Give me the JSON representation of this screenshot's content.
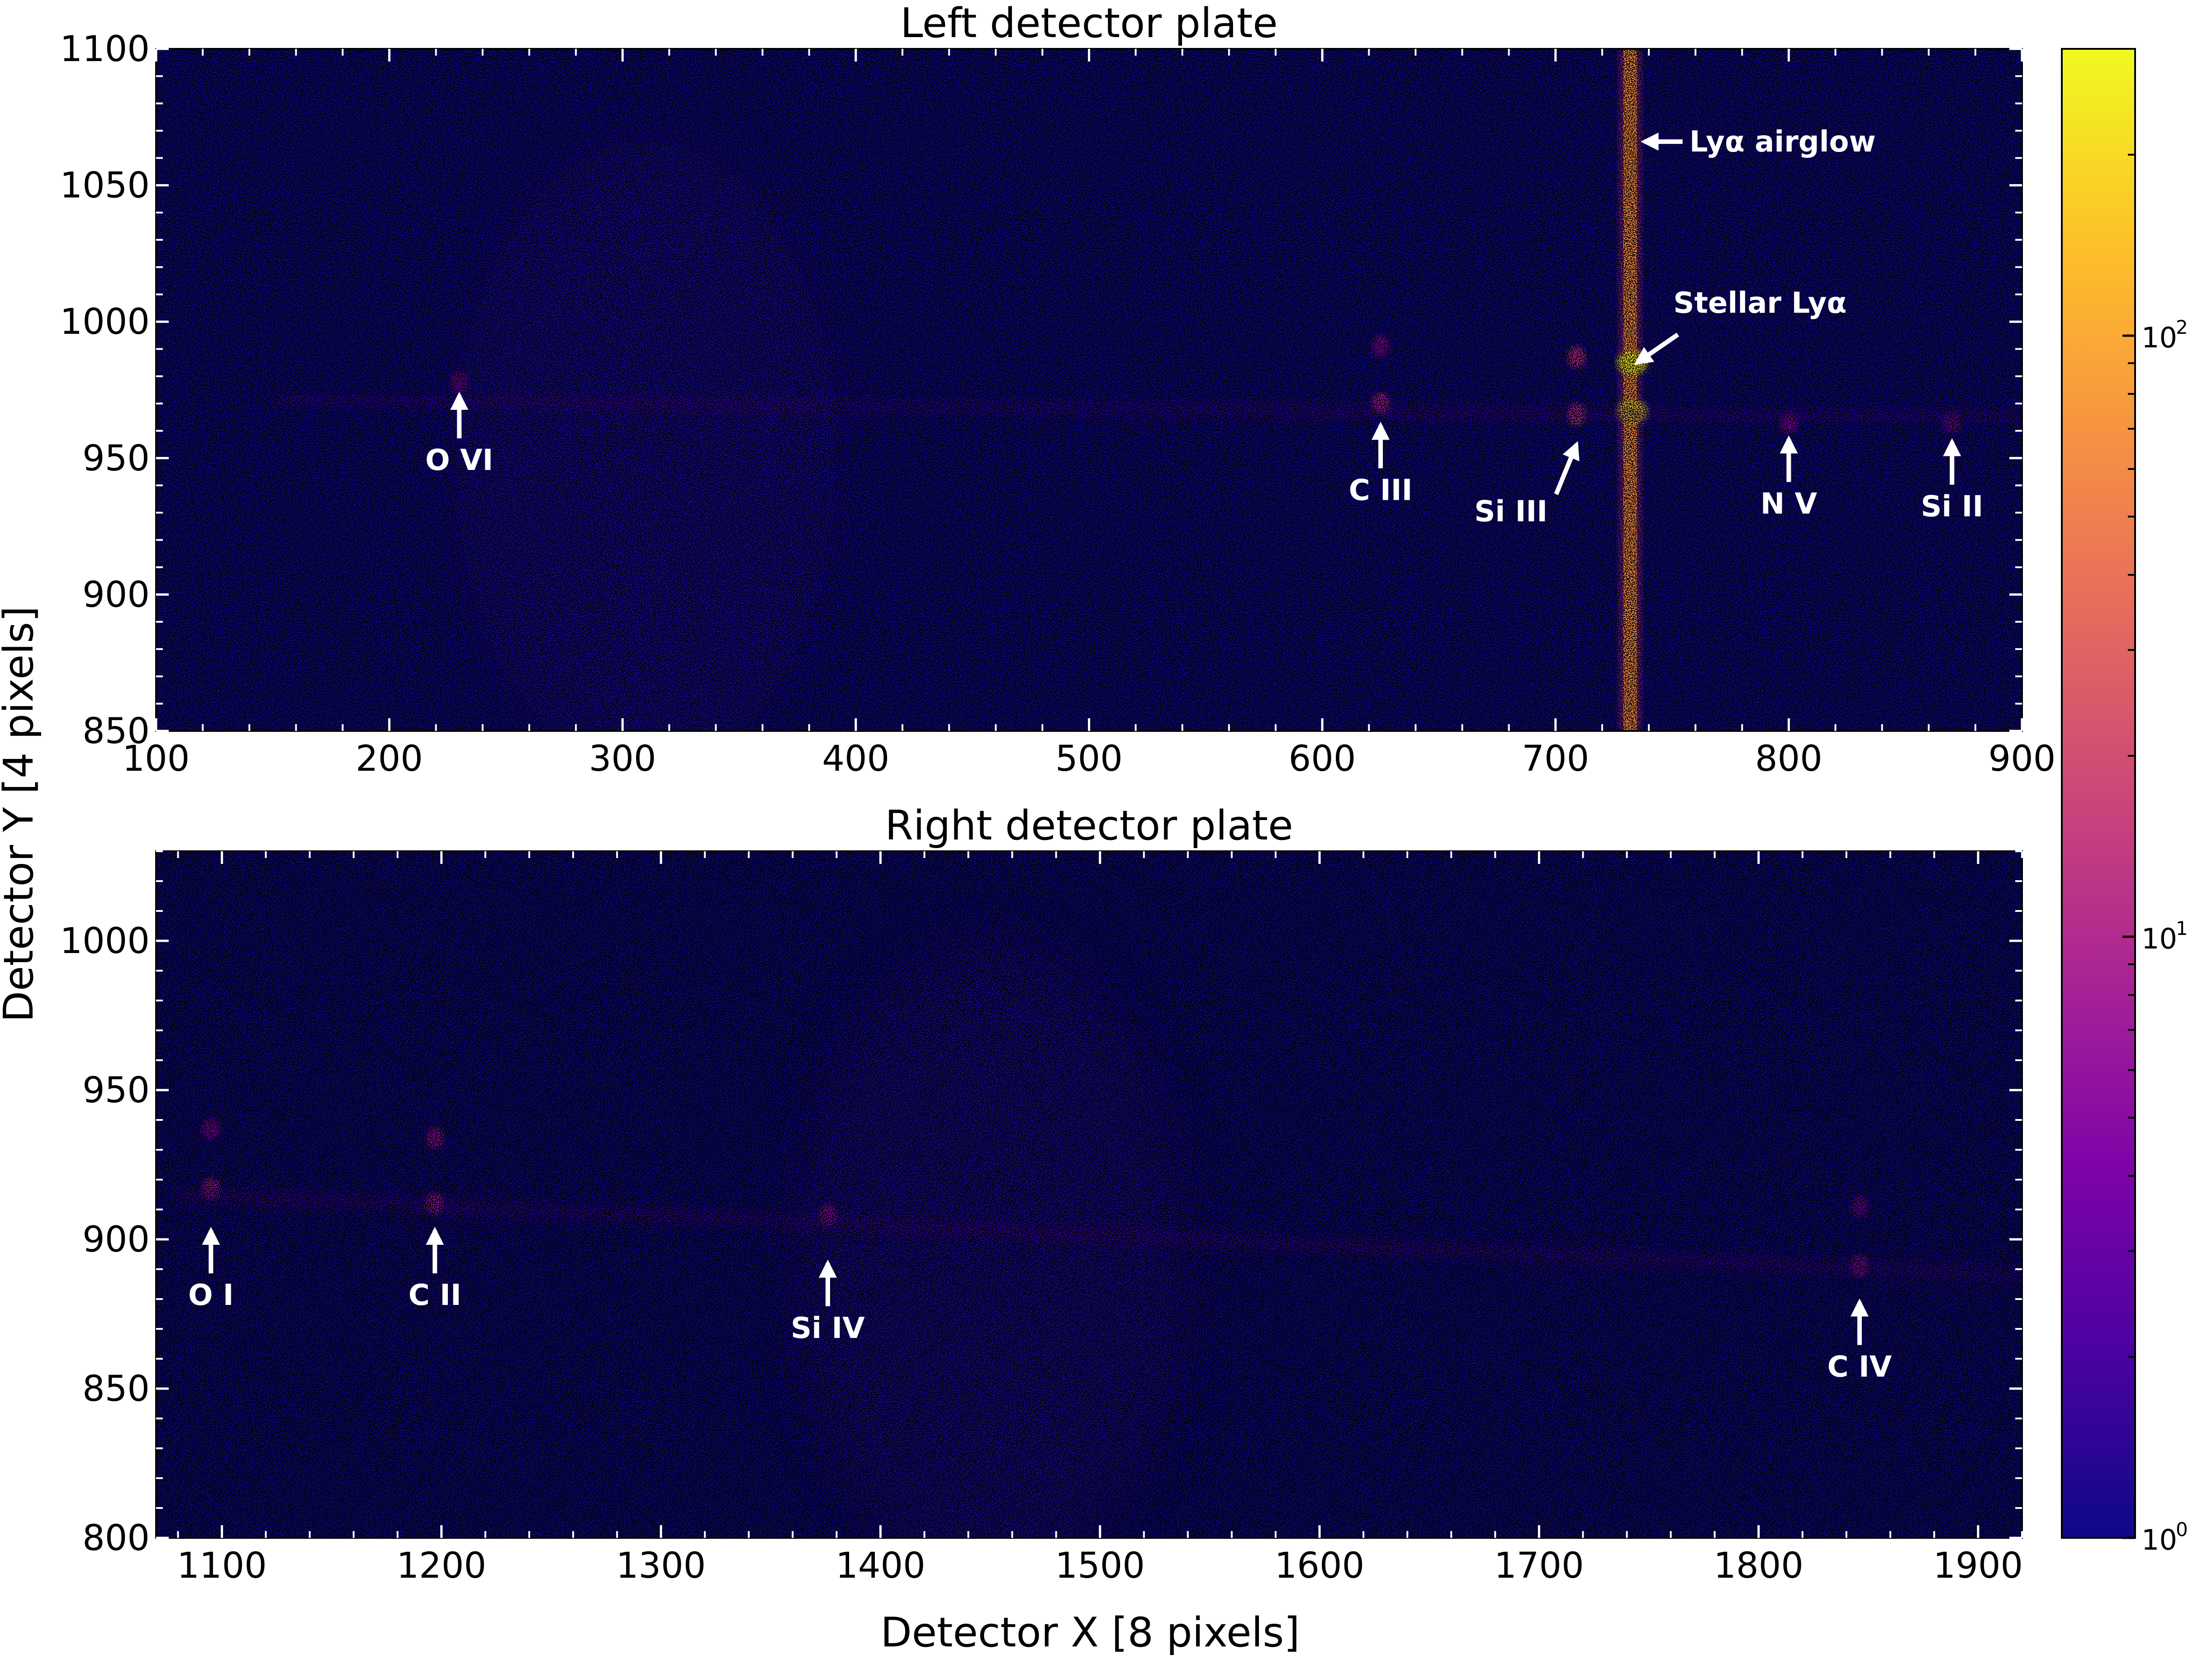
{
  "xlabel": "Detector X [8 pixels]",
  "ylabel": "Detector Y [4 pixels]",
  "colors": {
    "colormap": "plasma",
    "background": "#0d0887",
    "dark": "#000000",
    "annotation": "#ffffff"
  },
  "colorbar": {
    "scale": "log",
    "min": 1,
    "max": 300,
    "tick_base": "10",
    "ticks": [
      {
        "value": 1,
        "exp": "0"
      },
      {
        "value": 10,
        "exp": "1"
      },
      {
        "value": 100,
        "exp": "2"
      }
    ]
  },
  "chart_data": [
    {
      "type": "heatmap",
      "title": "Left detector plate",
      "xlim": [
        100,
        900
      ],
      "ylim": [
        850,
        1100
      ],
      "xticks": [
        100,
        200,
        300,
        400,
        500,
        600,
        700,
        800,
        900
      ],
      "yticks": [
        850,
        900,
        950,
        1000,
        1050,
        1100
      ],
      "features": [
        {
          "kind": "vertical-band",
          "x": 732,
          "intensity": 60
        },
        {
          "kind": "spot",
          "x": 733,
          "y": 985,
          "intensity": 250
        },
        {
          "kind": "spot",
          "x": 733,
          "y": 967,
          "intensity": 200
        },
        {
          "kind": "spot",
          "x": 709,
          "y": 987,
          "intensity": 10
        },
        {
          "kind": "spot",
          "x": 709,
          "y": 966,
          "intensity": 12
        },
        {
          "kind": "spot",
          "x": 625,
          "y": 970,
          "intensity": 8
        },
        {
          "kind": "spot",
          "x": 625,
          "y": 991,
          "intensity": 4
        },
        {
          "kind": "spot",
          "x": 230,
          "y": 978,
          "intensity": 3
        },
        {
          "kind": "spot",
          "x": 800,
          "y": 963,
          "intensity": 4
        },
        {
          "kind": "spot",
          "x": 870,
          "y": 963,
          "intensity": 3
        },
        {
          "kind": "trace",
          "x0": 150,
          "y0": 972,
          "x1": 900,
          "y1": 964,
          "intensity": 2
        }
      ],
      "annotations": [
        {
          "text": "Lyα airglow",
          "x": 738,
          "y": 1066
        },
        {
          "text": "Stellar Lyα",
          "x": 735,
          "y": 985
        },
        {
          "text": "O VI",
          "x": 230,
          "y": 973
        },
        {
          "text": "C III",
          "x": 625,
          "y": 962
        },
        {
          "text": "Si III",
          "x": 709,
          "y": 955
        },
        {
          "text": "N V",
          "x": 800,
          "y": 957
        },
        {
          "text": "Si II",
          "x": 870,
          "y": 956
        }
      ]
    },
    {
      "type": "heatmap",
      "title": "Right detector plate",
      "xlim": [
        1070,
        1920
      ],
      "ylim": [
        800,
        1030
      ],
      "xticks": [
        1100,
        1200,
        1300,
        1400,
        1500,
        1600,
        1700,
        1800,
        1900
      ],
      "yticks": [
        800,
        850,
        900,
        950,
        1000
      ],
      "features": [
        {
          "kind": "spot",
          "x": 1095,
          "y": 917,
          "intensity": 6
        },
        {
          "kind": "spot",
          "x": 1095,
          "y": 937,
          "intensity": 4
        },
        {
          "kind": "spot",
          "x": 1197,
          "y": 912,
          "intensity": 7
        },
        {
          "kind": "spot",
          "x": 1197,
          "y": 934,
          "intensity": 5
        },
        {
          "kind": "spot",
          "x": 1376,
          "y": 908,
          "intensity": 5
        },
        {
          "kind": "spot",
          "x": 1846,
          "y": 891,
          "intensity": 5
        },
        {
          "kind": "spot",
          "x": 1846,
          "y": 911,
          "intensity": 3
        },
        {
          "kind": "trace",
          "x0": 1080,
          "y0": 915,
          "x1": 1920,
          "y1": 888,
          "intensity": 2.2
        }
      ],
      "annotations": [
        {
          "text": "O I",
          "x": 1095,
          "y": 903
        },
        {
          "text": "C II",
          "x": 1197,
          "y": 903
        },
        {
          "text": "Si IV",
          "x": 1376,
          "y": 892
        },
        {
          "text": "C IV",
          "x": 1846,
          "y": 879
        }
      ]
    }
  ]
}
